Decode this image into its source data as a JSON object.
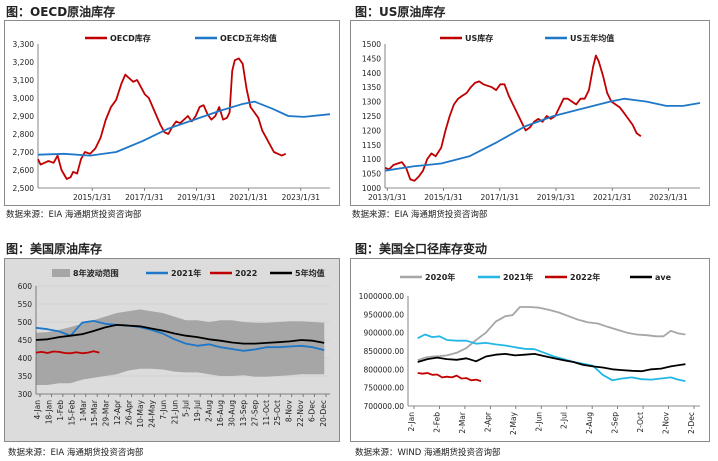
{
  "chart_data": [
    {
      "id": "oecd",
      "type": "line",
      "title": "图：OECD原油库存",
      "source": "数据来源：EIA    海通期货投资咨询部",
      "legend": [
        "OECD库存",
        "OECD五年均值"
      ],
      "colors": [
        "#c00000",
        "#1f77c8"
      ],
      "ylim": [
        2500,
        3300
      ],
      "yticks": [
        "2,500",
        "2,600",
        "2,700",
        "2,800",
        "2,900",
        "3,000",
        "3,100",
        "3,200",
        "3,300"
      ],
      "xlim": [
        2013.0,
        2024.2
      ],
      "xticks": [
        {
          "v": 2015.08,
          "label": "2015/1/31"
        },
        {
          "v": 2017.08,
          "label": "2017/1/31"
        },
        {
          "v": 2019.08,
          "label": "2019/1/31"
        },
        {
          "v": 2021.08,
          "label": "2021/1/31"
        },
        {
          "v": 2023.08,
          "label": "2023/1/31"
        }
      ],
      "series": [
        {
          "name": "OECD库存",
          "x": [
            2013.0,
            2013.1,
            2013.25,
            2013.4,
            2013.6,
            2013.75,
            2013.9,
            2014.1,
            2014.25,
            2014.35,
            2014.5,
            2014.65,
            2014.8,
            2015.0,
            2015.2,
            2015.4,
            2015.6,
            2015.8,
            2016.0,
            2016.2,
            2016.35,
            2016.5,
            2016.65,
            2016.8,
            2016.95,
            2017.1,
            2017.25,
            2017.4,
            2017.55,
            2017.7,
            2017.85,
            2018.0,
            2018.15,
            2018.3,
            2018.45,
            2018.6,
            2018.75,
            2018.9,
            2019.05,
            2019.2,
            2019.35,
            2019.5,
            2019.65,
            2019.8,
            2019.95,
            2020.1,
            2020.25,
            2020.35,
            2020.45,
            2020.55,
            2020.7,
            2020.85,
            2021.0,
            2021.15,
            2021.3,
            2021.45,
            2021.6,
            2021.75,
            2021.9,
            2022.05,
            2022.2,
            2022.35,
            2022.5
          ],
          "values": [
            2660,
            2630,
            2640,
            2650,
            2640,
            2680,
            2600,
            2550,
            2560,
            2590,
            2580,
            2660,
            2700,
            2690,
            2720,
            2780,
            2880,
            2950,
            2990,
            3080,
            3130,
            3110,
            3090,
            3100,
            3060,
            3020,
            3000,
            2950,
            2900,
            2850,
            2810,
            2800,
            2840,
            2870,
            2860,
            2880,
            2900,
            2870,
            2900,
            2950,
            2960,
            2910,
            2880,
            2900,
            2950,
            2880,
            2890,
            2920,
            3150,
            3210,
            3220,
            3190,
            3050,
            2950,
            2920,
            2890,
            2820,
            2780,
            2740,
            2700,
            2690,
            2680,
            2690
          ]
        },
        {
          "name": "OECD五年均值",
          "x": [
            2013.0,
            2014.0,
            2015.0,
            2016.0,
            2017.0,
            2018.0,
            2019.0,
            2020.0,
            2020.8,
            2021.3,
            2022.0,
            2022.6,
            2023.2,
            2024.2
          ],
          "values": [
            2685,
            2690,
            2680,
            2700,
            2760,
            2830,
            2880,
            2930,
            2965,
            2980,
            2940,
            2900,
            2895,
            2910
          ]
        }
      ]
    },
    {
      "id": "us",
      "type": "line",
      "title": "图：US原油库存",
      "source": "数据来源：EIA    海通期货投资咨询部",
      "legend": [
        "US库存",
        "US五年均值"
      ],
      "colors": [
        "#c00000",
        "#1f77c8"
      ],
      "ylim": [
        1000,
        1500
      ],
      "yticks": [
        "1000",
        "1050",
        "1100",
        "1150",
        "1200",
        "1250",
        "1300",
        "1350",
        "1400",
        "1450",
        "1500"
      ],
      "xlim": [
        2013.0,
        2024.2
      ],
      "xticks": [
        {
          "v": 2013.08,
          "label": "2013/1/31"
        },
        {
          "v": 2015.08,
          "label": "2015/1/31"
        },
        {
          "v": 2017.08,
          "label": "2017/1/31"
        },
        {
          "v": 2019.08,
          "label": "2019/1/31"
        },
        {
          "v": 2021.08,
          "label": "2021/1/31"
        },
        {
          "v": 2023.08,
          "label": "2023/1/31"
        }
      ],
      "series": [
        {
          "name": "US库存",
          "x": [
            2013.0,
            2013.15,
            2013.3,
            2013.45,
            2013.6,
            2013.75,
            2013.9,
            2014.05,
            2014.2,
            2014.35,
            2014.5,
            2014.65,
            2014.8,
            2015.0,
            2015.15,
            2015.3,
            2015.45,
            2015.6,
            2015.75,
            2015.9,
            2016.05,
            2016.2,
            2016.35,
            2016.5,
            2016.65,
            2016.8,
            2016.95,
            2017.1,
            2017.25,
            2017.4,
            2017.55,
            2017.7,
            2017.85,
            2018.0,
            2018.15,
            2018.3,
            2018.45,
            2018.6,
            2018.75,
            2018.9,
            2019.05,
            2019.2,
            2019.35,
            2019.5,
            2019.65,
            2019.8,
            2019.95,
            2020.1,
            2020.25,
            2020.4,
            2020.5,
            2020.6,
            2020.75,
            2020.9,
            2021.05,
            2021.2,
            2021.35,
            2021.5,
            2021.65,
            2021.8,
            2021.95,
            2022.1
          ],
          "values": [
            1070,
            1065,
            1080,
            1085,
            1090,
            1070,
            1030,
            1025,
            1040,
            1060,
            1100,
            1120,
            1110,
            1140,
            1200,
            1250,
            1290,
            1310,
            1320,
            1330,
            1350,
            1365,
            1370,
            1360,
            1355,
            1350,
            1340,
            1360,
            1360,
            1320,
            1290,
            1260,
            1230,
            1200,
            1210,
            1230,
            1240,
            1230,
            1250,
            1240,
            1250,
            1280,
            1310,
            1310,
            1300,
            1290,
            1310,
            1310,
            1340,
            1420,
            1460,
            1440,
            1390,
            1330,
            1300,
            1290,
            1280,
            1260,
            1240,
            1220,
            1190,
            1180
          ]
        },
        {
          "name": "US五年均值",
          "x": [
            2013.0,
            2014.0,
            2015.0,
            2016.0,
            2017.0,
            2018.0,
            2019.0,
            2020.0,
            2021.0,
            2021.5,
            2022.3,
            2023.0,
            2023.6,
            2024.2
          ],
          "values": [
            1060,
            1075,
            1085,
            1110,
            1160,
            1215,
            1250,
            1275,
            1300,
            1310,
            1300,
            1285,
            1285,
            1295
          ]
        }
      ]
    },
    {
      "id": "us-weekly",
      "type": "area",
      "title": "图：美国原油库存",
      "source": "数据来源：EIA    海通期货投资咨询部",
      "legend": [
        "8年波动范围",
        "2021年",
        "2022",
        "5年均值"
      ],
      "colors": [
        "#a6a6a6",
        "#1f77c8",
        "#c00000",
        "#000000"
      ],
      "ylim": [
        300,
        600
      ],
      "yticks": [
        "300",
        "350",
        "400",
        "450",
        "500",
        "550",
        "600"
      ],
      "xticks": [
        "4-Jan",
        "18-Jan",
        "1-Feb",
        "15-Feb",
        "1-Mar",
        "15-Mar",
        "29-Mar",
        "12-Apr",
        "26-Apr",
        "10-May",
        "24-May",
        "7-Jun",
        "21-Jun",
        "5-Jul",
        "19-Jul",
        "2-Aug",
        "16-Aug",
        "30-Aug",
        "13-Sep",
        "27-Sep",
        "11-Oct",
        "25-Oct",
        "8-Nov",
        "22-Nov",
        "6-Dec",
        "20-Dec"
      ],
      "x": [
        0,
        2,
        4,
        6,
        8,
        10,
        12,
        14,
        16,
        18,
        20,
        22,
        24,
        26,
        28,
        30,
        32,
        34,
        36,
        38,
        40,
        42,
        44,
        46,
        48,
        50
      ],
      "range_high": [
        470,
        472,
        478,
        486,
        495,
        505,
        515,
        525,
        530,
        535,
        530,
        525,
        515,
        505,
        505,
        500,
        505,
        505,
        500,
        498,
        498,
        500,
        502,
        502,
        500,
        498
      ],
      "range_low": [
        325,
        325,
        330,
        330,
        340,
        345,
        350,
        355,
        365,
        370,
        370,
        368,
        362,
        360,
        360,
        355,
        350,
        350,
        352,
        348,
        348,
        350,
        352,
        355,
        355,
        355
      ],
      "series": [
        {
          "name": "2021年",
          "x": [
            0,
            2,
            4,
            6,
            8,
            10,
            12,
            14,
            16,
            18,
            20,
            22,
            24,
            26,
            28,
            30,
            32,
            34,
            36,
            38,
            40,
            42,
            44,
            46,
            48,
            50
          ],
          "values": [
            484,
            480,
            474,
            462,
            498,
            503,
            495,
            492,
            490,
            486,
            478,
            468,
            452,
            440,
            434,
            438,
            430,
            425,
            420,
            424,
            430,
            430,
            432,
            434,
            430,
            422
          ]
        },
        {
          "name": "2022",
          "x": [
            0,
            1,
            2,
            3,
            4,
            5,
            6,
            7,
            8,
            9,
            10,
            11
          ],
          "values": [
            415,
            417,
            414,
            418,
            417,
            414,
            413,
            416,
            413,
            415,
            419,
            415
          ]
        },
        {
          "name": "5年均值",
          "x": [
            0,
            2,
            4,
            6,
            8,
            10,
            12,
            14,
            16,
            18,
            20,
            22,
            24,
            26,
            28,
            30,
            32,
            34,
            36,
            38,
            40,
            42,
            44,
            46,
            48,
            50
          ],
          "values": [
            450,
            452,
            458,
            462,
            466,
            475,
            485,
            492,
            490,
            488,
            482,
            476,
            468,
            462,
            458,
            452,
            448,
            443,
            440,
            440,
            442,
            444,
            446,
            450,
            448,
            442
          ]
        }
      ]
    },
    {
      "id": "us-total",
      "type": "line",
      "title": "图：美国全口径库存变动",
      "source": "数据来源：WIND    海通期货投资咨询部",
      "legend": [
        "2020年",
        "2021年",
        "2022年",
        "ave"
      ],
      "colors": [
        "#a6a6a6",
        "#23b7e5",
        "#c00000",
        "#000000"
      ],
      "ylim": [
        700000,
        1000000
      ],
      "yticks": [
        "700000.00",
        "750000.00",
        "800000.00",
        "850000.00",
        "900000.00",
        "950000.00",
        "1000000.00"
      ],
      "xticks": [
        "2-Jan",
        "2-Feb",
        "2-Mar",
        "2-Apr",
        "2-May",
        "2-Jun",
        "2-Jul",
        "2-Aug",
        "2-Sep",
        "2-Oct",
        "2-Nov",
        "2-Dec"
      ],
      "xlim": [
        0,
        12
      ],
      "series": [
        {
          "name": "2020年",
          "x": [
            0.4,
            0.7,
            1.0,
            1.3,
            1.6,
            2.0,
            2.4,
            2.8,
            3.2,
            3.6,
            4.0,
            4.3,
            4.6,
            5.0,
            5.4,
            5.8,
            6.2,
            6.6,
            7.0,
            7.4,
            7.8,
            8.2,
            8.6,
            9.0,
            9.4,
            9.8,
            10.2,
            10.5,
            10.8,
            11.1,
            11.4
          ],
          "values": [
            825000,
            832000,
            835000,
            836000,
            838000,
            845000,
            858000,
            880000,
            900000,
            930000,
            945000,
            948000,
            970000,
            970000,
            968000,
            962000,
            955000,
            945000,
            935000,
            928000,
            925000,
            916000,
            908000,
            900000,
            895000,
            893000,
            890000,
            890000,
            905000,
            898000,
            895000
          ]
        },
        {
          "name": "2021年",
          "x": [
            0.4,
            0.7,
            1.0,
            1.3,
            1.6,
            2.0,
            2.4,
            2.8,
            3.2,
            3.6,
            4.0,
            4.4,
            4.8,
            5.2,
            5.6,
            6.0,
            6.4,
            6.8,
            7.2,
            7.6,
            8.0,
            8.4,
            8.8,
            9.2,
            9.6,
            10.0,
            10.4,
            10.8,
            11.1,
            11.4
          ],
          "values": [
            885000,
            895000,
            888000,
            890000,
            880000,
            878000,
            878000,
            870000,
            872000,
            868000,
            865000,
            860000,
            856000,
            855000,
            845000,
            835000,
            828000,
            820000,
            815000,
            810000,
            785000,
            770000,
            775000,
            778000,
            773000,
            772000,
            775000,
            778000,
            772000,
            768000
          ]
        },
        {
          "name": "2022年",
          "x": [
            0.4,
            0.6,
            0.8,
            1.0,
            1.2,
            1.4,
            1.6,
            1.8,
            2.0,
            2.2,
            2.4,
            2.6,
            2.8,
            3.0
          ],
          "values": [
            790000,
            788000,
            790000,
            785000,
            786000,
            778000,
            780000,
            778000,
            783000,
            775000,
            776000,
            770000,
            772000,
            768000
          ]
        },
        {
          "name": "ave",
          "x": [
            0.4,
            0.8,
            1.2,
            1.6,
            2.0,
            2.4,
            2.8,
            3.2,
            3.6,
            4.0,
            4.4,
            4.8,
            5.2,
            5.6,
            6.0,
            6.4,
            6.8,
            7.2,
            7.6,
            8.0,
            8.4,
            8.8,
            9.2,
            9.6,
            10.0,
            10.4,
            10.8,
            11.2,
            11.4
          ],
          "values": [
            820000,
            828000,
            832000,
            828000,
            826000,
            830000,
            822000,
            835000,
            840000,
            842000,
            838000,
            840000,
            842000,
            836000,
            830000,
            825000,
            820000,
            812000,
            808000,
            805000,
            800000,
            798000,
            796000,
            795000,
            800000,
            802000,
            808000,
            812000,
            814000
          ]
        }
      ]
    }
  ]
}
